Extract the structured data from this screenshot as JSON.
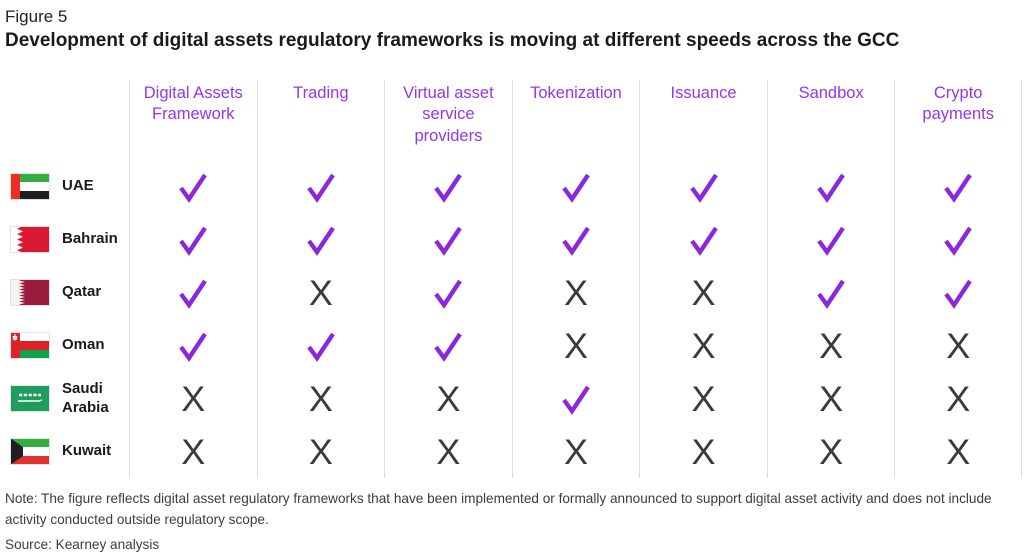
{
  "figure_label": "Figure 5",
  "title": "Development of digital assets regulatory frameworks is moving at different speeds across the GCC",
  "chart_data": {
    "type": "table",
    "columns": [
      "Digital Assets Framework",
      "Trading",
      "Virtual asset service providers",
      "Tokenization",
      "Issuance",
      "Sandbox",
      "Crypto payments"
    ],
    "rows": [
      {
        "country": "UAE",
        "flag": "uae",
        "values": [
          "check",
          "check",
          "check",
          "check",
          "check",
          "check",
          "check"
        ]
      },
      {
        "country": "Bahrain",
        "flag": "bahrain",
        "values": [
          "check",
          "check",
          "check",
          "check",
          "check",
          "check",
          "check"
        ]
      },
      {
        "country": "Qatar",
        "flag": "qatar",
        "values": [
          "check",
          "x",
          "check",
          "x",
          "x",
          "check",
          "check"
        ]
      },
      {
        "country": "Oman",
        "flag": "oman",
        "values": [
          "check",
          "check",
          "check",
          "x",
          "x",
          "x",
          "x"
        ]
      },
      {
        "country": "Saudi Arabia",
        "flag": "saudi-arabia",
        "values": [
          "x",
          "x",
          "x",
          "check",
          "x",
          "x",
          "x"
        ]
      },
      {
        "country": "Kuwait",
        "flag": "kuwait",
        "values": [
          "x",
          "x",
          "x",
          "x",
          "x",
          "x",
          "x"
        ]
      }
    ]
  },
  "symbols": {
    "check": "✓",
    "x": "X"
  },
  "colors": {
    "accent_check": "#8B27DC",
    "accent_header": "#9535EC",
    "x_mark": "#3B3B3B",
    "divider": "#DEDEDE"
  },
  "note": "Note: The figure reflects digital asset regulatory frameworks that have been implemented or formally announced to support digital asset activity and does not include activity conducted outside regulatory scope.",
  "source": "Source: Kearney analysis"
}
